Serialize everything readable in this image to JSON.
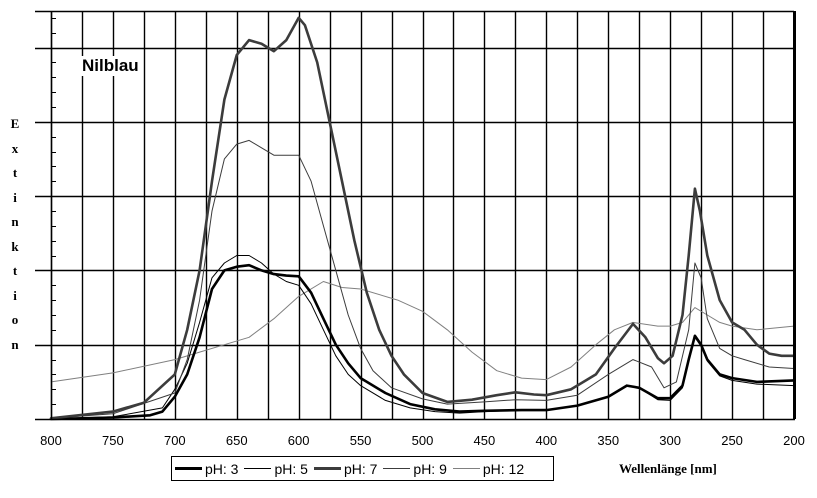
{
  "chart_data": {
    "type": "line",
    "title": "Nilblau",
    "xlabel": "Wellenlänge [nm]",
    "ylabel": "Extinktion",
    "xlim": [
      800,
      200
    ],
    "ylim": [
      0,
      5.5
    ],
    "x_ticks": [
      "800",
      "750",
      "700",
      "650",
      "600",
      "550",
      "500",
      "450",
      "400",
      "350",
      "300",
      "250",
      "200"
    ],
    "y_ticks_labeled": false,
    "grid": true,
    "legend_position": "bottom",
    "series": [
      {
        "name": "pH: 3",
        "color": "#000000",
        "width": 2.6,
        "points": [
          [
            800,
            0.0
          ],
          [
            750,
            0.02
          ],
          [
            720,
            0.05
          ],
          [
            710,
            0.1
          ],
          [
            700,
            0.3
          ],
          [
            690,
            0.6
          ],
          [
            680,
            1.1
          ],
          [
            670,
            1.75
          ],
          [
            660,
            2.0
          ],
          [
            650,
            2.05
          ],
          [
            640,
            2.07
          ],
          [
            630,
            2.0
          ],
          [
            620,
            1.95
          ],
          [
            610,
            1.93
          ],
          [
            600,
            1.92
          ],
          [
            590,
            1.7
          ],
          [
            580,
            1.35
          ],
          [
            570,
            1.0
          ],
          [
            560,
            0.75
          ],
          [
            550,
            0.55
          ],
          [
            530,
            0.35
          ],
          [
            510,
            0.2
          ],
          [
            490,
            0.13
          ],
          [
            470,
            0.1
          ],
          [
            450,
            0.11
          ],
          [
            420,
            0.12
          ],
          [
            400,
            0.12
          ],
          [
            375,
            0.18
          ],
          [
            350,
            0.3
          ],
          [
            335,
            0.45
          ],
          [
            325,
            0.42
          ],
          [
            310,
            0.28
          ],
          [
            300,
            0.28
          ],
          [
            290,
            0.45
          ],
          [
            285,
            0.8
          ],
          [
            280,
            1.12
          ],
          [
            275,
            1.0
          ],
          [
            270,
            0.8
          ],
          [
            260,
            0.6
          ],
          [
            250,
            0.55
          ],
          [
            230,
            0.5
          ],
          [
            200,
            0.52
          ]
        ]
      },
      {
        "name": "pH: 5",
        "color": "#000000",
        "width": 1,
        "points": [
          [
            800,
            0.0
          ],
          [
            750,
            0.03
          ],
          [
            710,
            0.15
          ],
          [
            700,
            0.4
          ],
          [
            690,
            0.75
          ],
          [
            680,
            1.3
          ],
          [
            670,
            1.9
          ],
          [
            660,
            2.1
          ],
          [
            650,
            2.2
          ],
          [
            640,
            2.2
          ],
          [
            630,
            2.1
          ],
          [
            620,
            1.95
          ],
          [
            610,
            1.85
          ],
          [
            600,
            1.8
          ],
          [
            590,
            1.55
          ],
          [
            580,
            1.2
          ],
          [
            570,
            0.85
          ],
          [
            560,
            0.6
          ],
          [
            550,
            0.45
          ],
          [
            530,
            0.25
          ],
          [
            510,
            0.15
          ],
          [
            490,
            0.1
          ],
          [
            470,
            0.08
          ],
          [
            450,
            0.1
          ],
          [
            420,
            0.12
          ],
          [
            400,
            0.12
          ],
          [
            375,
            0.18
          ],
          [
            350,
            0.3
          ],
          [
            335,
            0.44
          ],
          [
            325,
            0.42
          ],
          [
            310,
            0.26
          ],
          [
            300,
            0.25
          ],
          [
            290,
            0.42
          ],
          [
            285,
            0.8
          ],
          [
            280,
            1.1
          ],
          [
            275,
            0.98
          ],
          [
            270,
            0.78
          ],
          [
            260,
            0.58
          ],
          [
            250,
            0.52
          ],
          [
            230,
            0.47
          ],
          [
            200,
            0.45
          ]
        ]
      },
      {
        "name": "pH: 7",
        "color": "#3c3c3c",
        "width": 2.6,
        "points": [
          [
            800,
            0.01
          ],
          [
            750,
            0.1
          ],
          [
            725,
            0.22
          ],
          [
            700,
            0.6
          ],
          [
            690,
            1.2
          ],
          [
            680,
            2.0
          ],
          [
            670,
            3.2
          ],
          [
            660,
            4.3
          ],
          [
            650,
            4.9
          ],
          [
            640,
            5.1
          ],
          [
            630,
            5.05
          ],
          [
            620,
            4.95
          ],
          [
            610,
            5.1
          ],
          [
            600,
            5.4
          ],
          [
            595,
            5.3
          ],
          [
            585,
            4.8
          ],
          [
            575,
            4.0
          ],
          [
            565,
            3.2
          ],
          [
            555,
            2.4
          ],
          [
            545,
            1.7
          ],
          [
            535,
            1.2
          ],
          [
            525,
            0.85
          ],
          [
            515,
            0.6
          ],
          [
            500,
            0.35
          ],
          [
            480,
            0.23
          ],
          [
            460,
            0.26
          ],
          [
            440,
            0.32
          ],
          [
            425,
            0.36
          ],
          [
            410,
            0.33
          ],
          [
            400,
            0.32
          ],
          [
            380,
            0.4
          ],
          [
            360,
            0.6
          ],
          [
            345,
            0.95
          ],
          [
            330,
            1.28
          ],
          [
            320,
            1.1
          ],
          [
            310,
            0.82
          ],
          [
            305,
            0.75
          ],
          [
            298,
            0.85
          ],
          [
            290,
            1.4
          ],
          [
            285,
            2.2
          ],
          [
            280,
            3.1
          ],
          [
            276,
            2.8
          ],
          [
            270,
            2.2
          ],
          [
            260,
            1.6
          ],
          [
            250,
            1.3
          ],
          [
            240,
            1.2
          ],
          [
            230,
            1.0
          ],
          [
            220,
            0.88
          ],
          [
            210,
            0.85
          ],
          [
            200,
            0.85
          ]
        ]
      },
      {
        "name": "pH: 9",
        "color": "#3c3c3c",
        "width": 1,
        "points": [
          [
            800,
            0.01
          ],
          [
            750,
            0.07
          ],
          [
            700,
            0.35
          ],
          [
            690,
            0.8
          ],
          [
            680,
            1.6
          ],
          [
            670,
            2.8
          ],
          [
            660,
            3.5
          ],
          [
            650,
            3.7
          ],
          [
            640,
            3.75
          ],
          [
            630,
            3.65
          ],
          [
            620,
            3.55
          ],
          [
            610,
            3.55
          ],
          [
            600,
            3.55
          ],
          [
            590,
            3.2
          ],
          [
            580,
            2.6
          ],
          [
            570,
            2.0
          ],
          [
            560,
            1.4
          ],
          [
            550,
            0.95
          ],
          [
            540,
            0.65
          ],
          [
            525,
            0.42
          ],
          [
            500,
            0.27
          ],
          [
            480,
            0.2
          ],
          [
            450,
            0.23
          ],
          [
            425,
            0.26
          ],
          [
            400,
            0.25
          ],
          [
            375,
            0.32
          ],
          [
            350,
            0.6
          ],
          [
            330,
            0.8
          ],
          [
            315,
            0.7
          ],
          [
            305,
            0.42
          ],
          [
            295,
            0.5
          ],
          [
            285,
            1.2
          ],
          [
            280,
            2.1
          ],
          [
            275,
            1.9
          ],
          [
            270,
            1.35
          ],
          [
            260,
            0.95
          ],
          [
            250,
            0.85
          ],
          [
            240,
            0.8
          ],
          [
            220,
            0.7
          ],
          [
            200,
            0.68
          ]
        ]
      },
      {
        "name": "pH: 12",
        "color": "#808080",
        "width": 1,
        "points": [
          [
            800,
            0.5
          ],
          [
            750,
            0.62
          ],
          [
            700,
            0.8
          ],
          [
            680,
            0.9
          ],
          [
            660,
            1.0
          ],
          [
            640,
            1.1
          ],
          [
            620,
            1.35
          ],
          [
            600,
            1.65
          ],
          [
            580,
            1.85
          ],
          [
            565,
            1.77
          ],
          [
            550,
            1.75
          ],
          [
            520,
            1.6
          ],
          [
            500,
            1.45
          ],
          [
            480,
            1.2
          ],
          [
            460,
            0.9
          ],
          [
            440,
            0.65
          ],
          [
            420,
            0.55
          ],
          [
            400,
            0.53
          ],
          [
            380,
            0.7
          ],
          [
            360,
            1.0
          ],
          [
            345,
            1.2
          ],
          [
            330,
            1.3
          ],
          [
            310,
            1.25
          ],
          [
            300,
            1.25
          ],
          [
            290,
            1.3
          ],
          [
            280,
            1.5
          ],
          [
            270,
            1.4
          ],
          [
            260,
            1.3
          ],
          [
            250,
            1.25
          ],
          [
            230,
            1.2
          ],
          [
            200,
            1.25
          ]
        ]
      }
    ]
  }
}
